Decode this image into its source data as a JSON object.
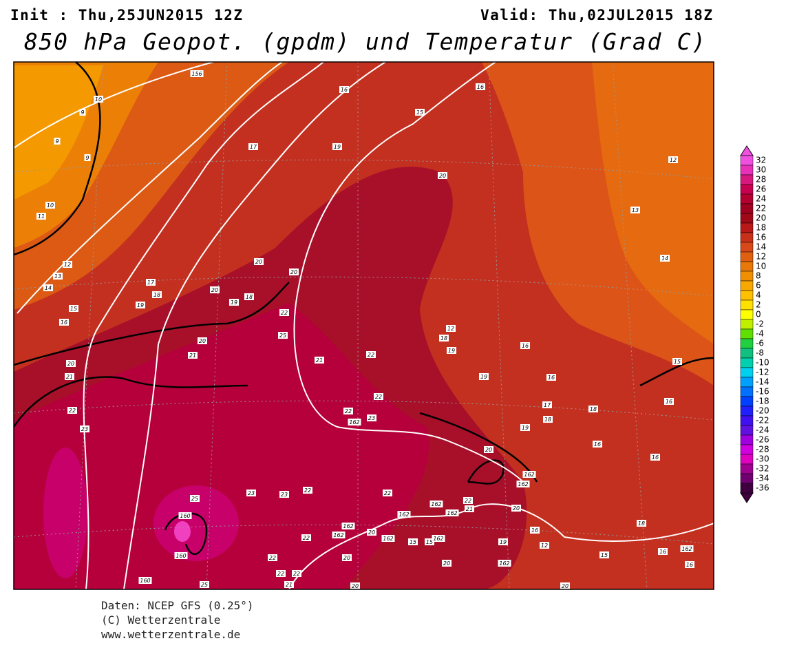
{
  "header": {
    "init": "Init : Thu,25JUN2015 12Z",
    "valid": "Valid: Thu,02JUL2015 18Z",
    "title": "850 hPa Geopot. (gpdm) und Temperatur (Grad C)"
  },
  "colorbar": {
    "labels": [
      32,
      30,
      28,
      26,
      24,
      22,
      20,
      18,
      16,
      14,
      12,
      10,
      8,
      6,
      4,
      2,
      0,
      -2,
      -4,
      -6,
      -8,
      -10,
      -12,
      -14,
      -16,
      -18,
      -20,
      -22,
      -24,
      -26,
      -28,
      -30,
      -32,
      -34,
      -36
    ],
    "colors": [
      "#f050e0",
      "#e830b8",
      "#d8187f",
      "#c80050",
      "#b40030",
      "#a00020",
      "#a00818",
      "#b81818",
      "#c83018",
      "#d84818",
      "#e06010",
      "#e87808",
      "#f09000",
      "#f8a800",
      "#ffc000",
      "#ffe000",
      "#ffff00",
      "#c0f000",
      "#60e000",
      "#20d040",
      "#10c080",
      "#00d0b0",
      "#00d0f0",
      "#00a0ff",
      "#0070ff",
      "#0040ff",
      "#2020ff",
      "#4010f0",
      "#6010e0",
      "#a000e0",
      "#d000e0",
      "#e000c0",
      "#a00090",
      "#700070",
      "#400040"
    ]
  },
  "map": {
    "labels": [
      156,
      16,
      16,
      15,
      17,
      19,
      20,
      12,
      13,
      14,
      10,
      9,
      9,
      9,
      10,
      11,
      12,
      13,
      14,
      15,
      16,
      17,
      18,
      19,
      20,
      20,
      18,
      19,
      20,
      22,
      25,
      20,
      21,
      20,
      21,
      22,
      23,
      21,
      22,
      12,
      18,
      19,
      16,
      15,
      19,
      16,
      22,
      17,
      16,
      18,
      22,
      162,
      23,
      18,
      19,
      16,
      16,
      20,
      162,
      162,
      25,
      160,
      23,
      23,
      22,
      22,
      162,
      22,
      21,
      162,
      162,
      20,
      160,
      160,
      22,
      162,
      162,
      20,
      162,
      15,
      15,
      162,
      19,
      16,
      12,
      15,
      16,
      162,
      16,
      18,
      22,
      20,
      20,
      162,
      22,
      22,
      25,
      21,
      20,
      20
    ]
  },
  "footer": {
    "lines": [
      "Daten: NCEP GFS (0.25°)",
      "(C) Wetterzentrale",
      "www.wetterzentrale.de"
    ]
  }
}
